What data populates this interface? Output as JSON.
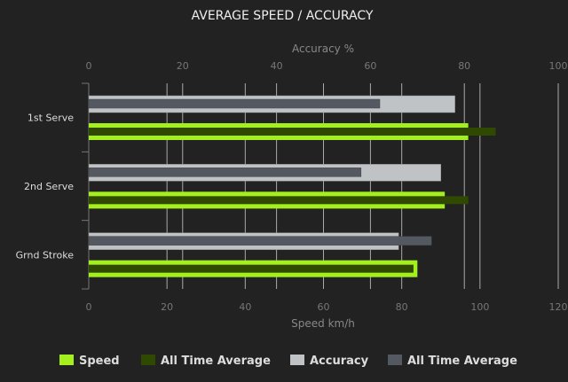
{
  "chart_data": {
    "type": "bar",
    "orientation": "horizontal",
    "title": "AVERAGE SPEED / ACCURACY",
    "categories": [
      "1st Serve",
      "2nd Serve",
      "Grnd Stroke"
    ],
    "top_axis": {
      "label": "Accuracy %",
      "range": [
        0,
        100
      ],
      "ticks": [
        0,
        20,
        40,
        60,
        80,
        100
      ]
    },
    "bottom_axis": {
      "label": "Speed km/h",
      "range": [
        0,
        120
      ],
      "ticks": [
        0,
        20,
        40,
        60,
        80,
        100,
        120
      ]
    },
    "grid": true,
    "legend_position": "bottom",
    "series": [
      {
        "name": "Speed",
        "axis": "bottom",
        "values": [
          97,
          91,
          84
        ],
        "color": "#a4f01e"
      },
      {
        "name": "All Time Average",
        "axis": "bottom",
        "values": [
          104,
          97,
          83
        ],
        "color": "#2f4a00"
      },
      {
        "name": "Accuracy",
        "axis": "top",
        "values": [
          78,
          75,
          66
        ],
        "color": "#bfc3c6"
      },
      {
        "name": "All Time Average",
        "axis": "top",
        "values": [
          62,
          58,
          73
        ],
        "color": "#545961"
      }
    ]
  }
}
